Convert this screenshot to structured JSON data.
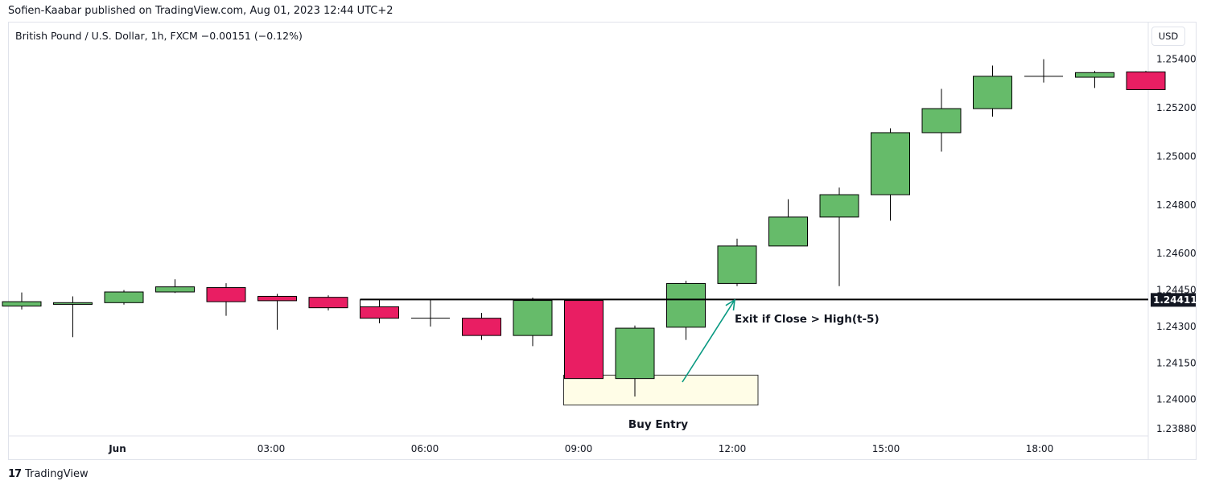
{
  "header": {
    "published_text": "Sofien-Kaabar published on TradingView.com, Aug 01, 2023 12:44 UTC+2",
    "symbol_text": "British Pound / U.S. Dollar, 1h, FXCM  −0.00151 (−0.12%)",
    "currency_button": "USD"
  },
  "footer": {
    "logo_icon": "tradingview-logo-icon",
    "logo_text": "TradingView"
  },
  "colors": {
    "bullish": "#66bb6a",
    "bearish": "#e91e63",
    "annotation_arrow": "#089981",
    "entry_box_fill": "#fffde7",
    "level_line": "#000000"
  },
  "chart_data": {
    "type": "candlestick",
    "title": "",
    "xlabel": "",
    "ylabel": "",
    "y_axis_position": "right",
    "x_ticks": [
      "Jun",
      "03:00",
      "06:00",
      "09:00",
      "12:00",
      "15:00",
      "18:00"
    ],
    "y_ticks": [
      "1.25400",
      "1.25200",
      "1.25000",
      "1.24800",
      "1.24600",
      "1.24450",
      "1.24300",
      "1.24150",
      "1.24000",
      "1.23880"
    ],
    "ylim": [
      1.2385,
      1.2555
    ],
    "candles": [
      {
        "o": 1.24384,
        "h": 1.2444,
        "l": 1.2437,
        "c": 1.24402
      },
      {
        "o": 1.24391,
        "h": 1.24424,
        "l": 1.24256,
        "c": 1.24398
      },
      {
        "o": 1.24398,
        "h": 1.2445,
        "l": 1.2439,
        "c": 1.24442
      },
      {
        "o": 1.24442,
        "h": 1.24494,
        "l": 1.24438,
        "c": 1.24463
      },
      {
        "o": 1.2446,
        "h": 1.24478,
        "l": 1.24344,
        "c": 1.24402
      },
      {
        "o": 1.24424,
        "h": 1.24434,
        "l": 1.24287,
        "c": 1.24406
      },
      {
        "o": 1.2442,
        "h": 1.24428,
        "l": 1.24366,
        "c": 1.24377
      },
      {
        "o": 1.24381,
        "h": 1.24411,
        "l": 1.24313,
        "c": 1.24334
      },
      {
        "o": 1.24334,
        "h": 1.24413,
        "l": 1.243,
        "c": 1.24334
      },
      {
        "o": 1.24334,
        "h": 1.24356,
        "l": 1.24245,
        "c": 1.24263
      },
      {
        "o": 1.24263,
        "h": 1.24419,
        "l": 1.24219,
        "c": 1.24407
      },
      {
        "o": 1.24407,
        "h": 1.24407,
        "l": 1.24086,
        "c": 1.24086
      },
      {
        "o": 1.24086,
        "h": 1.24304,
        "l": 1.24012,
        "c": 1.24293
      },
      {
        "o": 1.24297,
        "h": 1.24488,
        "l": 1.24245,
        "c": 1.24477
      },
      {
        "o": 1.24477,
        "h": 1.24661,
        "l": 1.24466,
        "c": 1.24631
      },
      {
        "o": 1.24631,
        "h": 1.24823,
        "l": 1.24631,
        "c": 1.2475
      },
      {
        "o": 1.2475,
        "h": 1.24871,
        "l": 1.24466,
        "c": 1.24842
      },
      {
        "o": 1.24842,
        "h": 1.25115,
        "l": 1.24735,
        "c": 1.25097
      },
      {
        "o": 1.25097,
        "h": 1.25277,
        "l": 1.25019,
        "c": 1.25196
      },
      {
        "o": 1.25196,
        "h": 1.25373,
        "l": 1.25163,
        "c": 1.25329
      },
      {
        "o": 1.25329,
        "h": 1.25399,
        "l": 1.25303,
        "c": 1.25329
      },
      {
        "o": 1.25325,
        "h": 1.25351,
        "l": 1.25281,
        "c": 1.25344
      },
      {
        "o": 1.25347,
        "h": 1.25351,
        "l": 1.25274,
        "c": 1.25274
      }
    ],
    "level_line": {
      "price": 1.24411,
      "label": "1.24411",
      "from_candle": 7
    },
    "annotations": {
      "exit_text": "Exit if Close > High(t-5)",
      "entry_text": "Buy Entry",
      "entry_box": {
        "from_candle": 11,
        "to_candle": 14,
        "price_high": 1.241,
        "price_low": 1.23977
      }
    }
  }
}
